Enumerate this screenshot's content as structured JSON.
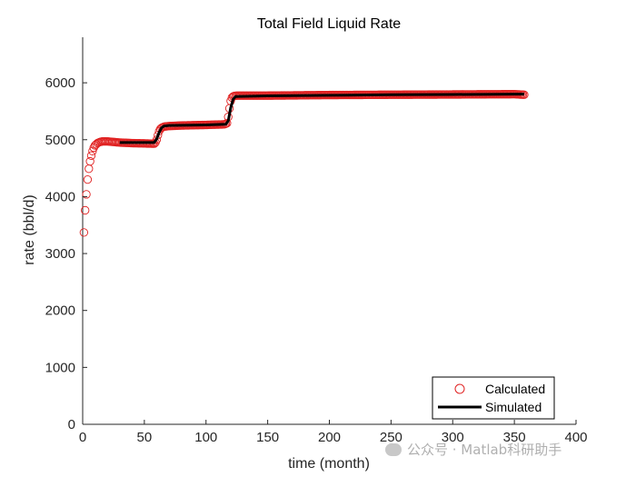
{
  "chart_data": {
    "type": "scatter",
    "title": "Total Field Liquid Rate",
    "xlabel": "time (month)",
    "ylabel": "rate (bbl/d)",
    "xlim": [
      0,
      400
    ],
    "ylim": [
      0,
      6800
    ],
    "xticks": [
      0,
      50,
      100,
      150,
      200,
      250,
      300,
      350,
      400
    ],
    "yticks": [
      0,
      1000,
      2000,
      3000,
      4000,
      5000,
      6000
    ],
    "grid": false,
    "legend": "bottom-right",
    "colors": {
      "calculated": "#e02020",
      "simulated": "#000000"
    },
    "series": [
      {
        "name": "Calculated",
        "marker": "circle-open",
        "profile": {
          "x": [
            1,
            2,
            3,
            4,
            5,
            6,
            7,
            8,
            9,
            10,
            12,
            14,
            16,
            20,
            25,
            30,
            40,
            50,
            58,
            59,
            60,
            61,
            62,
            63,
            64,
            66,
            70,
            80,
            100,
            115,
            117,
            118,
            119,
            120,
            121,
            122,
            123,
            125,
            130,
            150,
            200,
            250,
            300,
            350,
            358
          ],
          "y": [
            3370,
            3760,
            4040,
            4300,
            4490,
            4620,
            4720,
            4800,
            4860,
            4900,
            4940,
            4960,
            4970,
            4970,
            4960,
            4950,
            4940,
            4935,
            4930,
            4950,
            5000,
            5080,
            5150,
            5190,
            5210,
            5230,
            5240,
            5250,
            5260,
            5270,
            5290,
            5400,
            5550,
            5680,
            5740,
            5760,
            5770,
            5775,
            5775,
            5775,
            5785,
            5790,
            5795,
            5800,
            5790
          ]
        }
      },
      {
        "name": "Simulated",
        "marker": "line",
        "x": [
          30,
          58,
          60,
          62,
          64,
          66,
          70,
          100,
          116,
          118,
          120,
          122,
          124,
          150,
          200,
          250,
          300,
          350,
          358
        ],
        "y": [
          4950,
          4950,
          5010,
          5130,
          5210,
          5240,
          5250,
          5260,
          5270,
          5330,
          5560,
          5710,
          5760,
          5770,
          5780,
          5790,
          5795,
          5800,
          5800
        ]
      }
    ]
  },
  "watermark": {
    "text": "公众号 · Matlab科研助手"
  }
}
